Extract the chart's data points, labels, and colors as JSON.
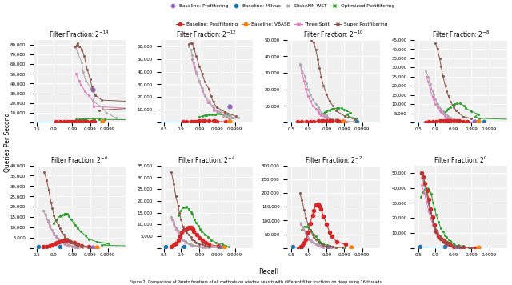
{
  "subplot_titles": [
    "Filter Fraction: $2^{-14}$",
    "Filter Fraction: $2^{-12}$",
    "Filter Fraction: $2^{-10}$",
    "Filter Fraction: $2^{-8}$",
    "Filter Fraction: $2^{-6}$",
    "Filter Fraction: $2^{-4}$",
    "Filter Fraction: $2^{-2}$",
    "Filter Fraction: $2^{0}$"
  ],
  "legend_row1": [
    [
      "Baseline: Prefiltering",
      "#9467bd",
      "o",
      "-"
    ],
    [
      "Baseline: Milvus",
      "#1f77b4",
      "o",
      "-"
    ],
    [
      "DiskANN WST",
      "#aaaaaa",
      "x",
      "-"
    ],
    [
      "Optimized Postfiltering",
      "#2ca02c",
      "x",
      "-"
    ]
  ],
  "legend_row2": [
    [
      "Baseline: Postfiltering",
      "#d62728",
      "o",
      "-"
    ],
    [
      "Baseline: VBASE",
      "#ff7f0e",
      "o",
      "-"
    ],
    [
      "Three Split",
      "#e377c2",
      "x",
      "-"
    ],
    [
      "Super Postfiltering",
      "#8c564b",
      "x",
      "-"
    ]
  ],
  "ylabel": "Queries Per Second",
  "xlabel": "Recall",
  "caption": "Figure 2: Comparison of Pareto frontiers of all methods on window search with different filter fractions on deep using 16 threads",
  "ylims": [
    85000,
    65000,
    50000,
    45000,
    40000,
    35000,
    300000,
    55000
  ],
  "bg_color": "#f0f0f0",
  "grid_color": "white"
}
